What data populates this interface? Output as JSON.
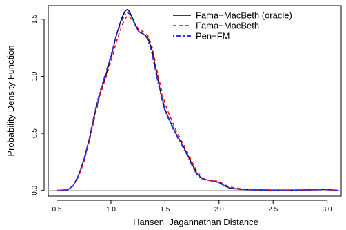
{
  "chart_data": {
    "type": "line",
    "title": "",
    "xlabel": "Hansen−Jagannathan Distance",
    "ylabel": "Probability Density Function",
    "xlim": [
      0.42,
      3.13
    ],
    "ylim": [
      -0.05,
      1.62
    ],
    "x_ticks": [
      0.5,
      1.0,
      1.5,
      2.0,
      2.5,
      3.0
    ],
    "x_tick_labels": [
      "0.5",
      "1.0",
      "1.5",
      "2.0",
      "2.5",
      "3.0"
    ],
    "y_ticks": [
      0.0,
      0.5,
      1.0,
      1.5
    ],
    "y_tick_labels": [
      "0.0",
      "0.5",
      "1.0",
      "1.5"
    ],
    "zero_line": true,
    "grid": false,
    "legend_position": "top-right",
    "series": [
      {
        "name": "Fama−MacBeth (oracle)",
        "color": "#000000",
        "style": "solid",
        "x": [
          0.5,
          0.6,
          0.65,
          0.7,
          0.75,
          0.8,
          0.85,
          0.9,
          0.95,
          1.0,
          1.05,
          1.1,
          1.13,
          1.15,
          1.17,
          1.2,
          1.23,
          1.26,
          1.3,
          1.34,
          1.38,
          1.42,
          1.46,
          1.5,
          1.55,
          1.6,
          1.65,
          1.7,
          1.75,
          1.8,
          1.85,
          1.9,
          2.0,
          2.05,
          2.1,
          2.2,
          2.3,
          2.5,
          2.7,
          2.9,
          2.97,
          3.05,
          3.1
        ],
        "y": [
          0.0,
          0.005,
          0.04,
          0.13,
          0.27,
          0.45,
          0.67,
          0.85,
          1.0,
          1.17,
          1.36,
          1.51,
          1.57,
          1.585,
          1.57,
          1.51,
          1.44,
          1.39,
          1.37,
          1.34,
          1.23,
          1.04,
          0.86,
          0.71,
          0.6,
          0.5,
          0.42,
          0.33,
          0.23,
          0.14,
          0.1,
          0.09,
          0.07,
          0.04,
          0.02,
          0.01,
          0.005,
          0.003,
          0.003,
          0.006,
          0.01,
          0.004,
          0.0
        ]
      },
      {
        "name": "Fama−MacBeth",
        "color": "#ff0000",
        "style": "dashed",
        "x": [
          0.5,
          0.6,
          0.65,
          0.7,
          0.75,
          0.8,
          0.85,
          0.9,
          0.95,
          1.0,
          1.05,
          1.1,
          1.13,
          1.15,
          1.17,
          1.2,
          1.23,
          1.26,
          1.3,
          1.34,
          1.38,
          1.42,
          1.46,
          1.5,
          1.55,
          1.6,
          1.65,
          1.7,
          1.75,
          1.8,
          1.85,
          1.9,
          2.0,
          2.05,
          2.1,
          2.2,
          2.3,
          2.5,
          2.7,
          2.9,
          2.97,
          3.05,
          3.1
        ],
        "y": [
          0.0,
          0.005,
          0.04,
          0.12,
          0.25,
          0.43,
          0.64,
          0.84,
          0.98,
          1.13,
          1.3,
          1.44,
          1.5,
          1.53,
          1.52,
          1.49,
          1.45,
          1.41,
          1.39,
          1.36,
          1.26,
          1.08,
          0.91,
          0.76,
          0.64,
          0.53,
          0.44,
          0.35,
          0.25,
          0.16,
          0.11,
          0.09,
          0.08,
          0.05,
          0.03,
          0.015,
          0.006,
          0.004,
          0.003,
          0.006,
          0.01,
          0.004,
          0.0
        ]
      },
      {
        "name": "Pen−FM",
        "color": "#3333ff",
        "style": "dotdash",
        "x": [
          0.5,
          0.6,
          0.65,
          0.7,
          0.75,
          0.8,
          0.85,
          0.9,
          0.95,
          1.0,
          1.05,
          1.1,
          1.13,
          1.15,
          1.17,
          1.2,
          1.23,
          1.26,
          1.3,
          1.34,
          1.38,
          1.42,
          1.46,
          1.5,
          1.55,
          1.6,
          1.65,
          1.7,
          1.75,
          1.8,
          1.85,
          1.9,
          2.0,
          2.05,
          2.1,
          2.2,
          2.3,
          2.5,
          2.7,
          2.9,
          2.97,
          3.05,
          3.1
        ],
        "y": [
          0.0,
          0.005,
          0.04,
          0.13,
          0.27,
          0.45,
          0.68,
          0.87,
          1.02,
          1.18,
          1.36,
          1.49,
          1.54,
          1.56,
          1.55,
          1.5,
          1.44,
          1.39,
          1.37,
          1.33,
          1.2,
          1.02,
          0.84,
          0.7,
          0.59,
          0.49,
          0.41,
          0.32,
          0.22,
          0.13,
          0.1,
          0.09,
          0.07,
          0.04,
          0.02,
          0.01,
          0.005,
          0.003,
          0.003,
          0.006,
          0.01,
          0.004,
          0.0
        ]
      }
    ]
  }
}
